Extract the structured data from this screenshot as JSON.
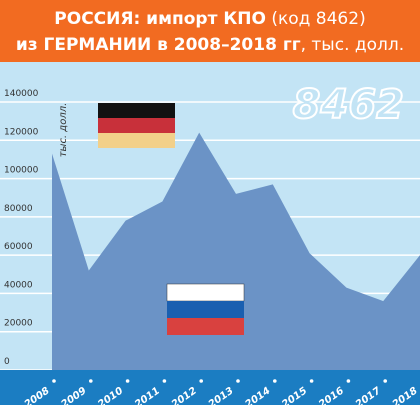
{
  "chart_data": {
    "type": "area",
    "title_line1_bold": "РОССИЯ: импорт КПО",
    "title_line1_light": "(код 8462)",
    "title_line2_bold": "из ГЕРМАНИИ в 2008–2018 гг",
    "title_line2_light": ", тыс. долл.",
    "y_label": "тыс. долл.",
    "annotation": "8462",
    "categories": [
      "2008",
      "2009",
      "2010",
      "2011",
      "2012",
      "2013",
      "2014",
      "2015",
      "2016",
      "2017",
      "2018"
    ],
    "values": [
      113000,
      52000,
      78000,
      88000,
      124000,
      92000,
      97000,
      61000,
      43000,
      36000,
      60000
    ],
    "color": "#6b93c6",
    "ylim": [
      0,
      140000
    ],
    "yticks": [
      0,
      20000,
      40000,
      60000,
      80000,
      100000,
      120000,
      140000
    ],
    "grid": true
  }
}
